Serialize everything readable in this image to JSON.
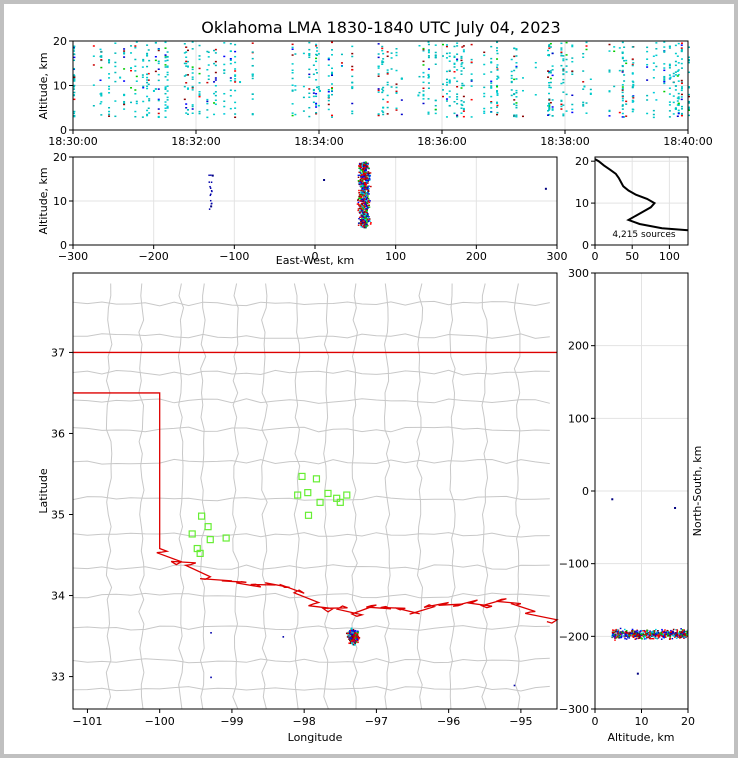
{
  "figure": {
    "title": "Oklahoma LMA 1830-1840 UTC July 04, 2023",
    "colors": {
      "state_border": "#dd0000",
      "county_line": "#c8c8c8",
      "station": "#66ee33"
    }
  },
  "chart_data": [
    {
      "id": "time_height",
      "type": "scatter",
      "xlabel": "",
      "ylabel": "Altitude, km",
      "x_tick_labels": [
        "18:30:00",
        "18:32:00",
        "18:34:00",
        "18:36:00",
        "18:38:00",
        "18:40:00"
      ],
      "x_range_minutes": [
        0,
        10
      ],
      "ylim": [
        0,
        20
      ],
      "y_ticks": [
        0,
        10,
        20
      ],
      "grid": true,
      "sample_points": [
        {
          "t": 0.0,
          "alt": 10
        },
        {
          "t": 0.75,
          "alt": 12
        },
        {
          "t": 1.3,
          "alt": 9
        },
        {
          "t": 2.7,
          "alt": 11
        },
        {
          "t": 4.0,
          "alt": 9
        },
        {
          "t": 5.6,
          "alt": 8
        },
        {
          "t": 6.9,
          "alt": 12
        },
        {
          "t": 8.3,
          "alt": 10
        },
        {
          "t": 9.7,
          "alt": 12
        }
      ]
    },
    {
      "id": "ew_height",
      "type": "scatter",
      "xlabel": "East-West, km",
      "ylabel": "Altitude, km",
      "xlim": [
        -300,
        300
      ],
      "x_ticks": [
        -300,
        -200,
        -100,
        0,
        100,
        200,
        300
      ],
      "ylim": [
        0,
        20
      ],
      "y_ticks": [
        0,
        10,
        20
      ],
      "grid": true,
      "sample_points": [
        {
          "x": 58,
          "alt": 5
        },
        {
          "x": 60,
          "alt": 12
        },
        {
          "x": 62,
          "alt": 18
        },
        {
          "x": -130,
          "alt": 9
        },
        {
          "x": -128,
          "alt": 16
        },
        {
          "x": 10,
          "alt": 15
        },
        {
          "x": 285,
          "alt": 13
        }
      ]
    },
    {
      "id": "altitude_histogram",
      "type": "line",
      "xlabel": "",
      "ylabel": "",
      "xlim": [
        0,
        125
      ],
      "x_ticks": [
        0,
        50,
        100
      ],
      "ylim": [
        0,
        21
      ],
      "y_ticks": [
        0,
        10,
        20
      ],
      "annotation": "4,215 sources",
      "profile": [
        {
          "alt": 3.5,
          "count": 125
        },
        {
          "alt": 4.0,
          "count": 90
        },
        {
          "alt": 5.0,
          "count": 60
        },
        {
          "alt": 6.0,
          "count": 45
        },
        {
          "alt": 7.0,
          "count": 55
        },
        {
          "alt": 8.0,
          "count": 65
        },
        {
          "alt": 9.0,
          "count": 75
        },
        {
          "alt": 10.0,
          "count": 80
        },
        {
          "alt": 11.0,
          "count": 70
        },
        {
          "alt": 12.0,
          "count": 55
        },
        {
          "alt": 13.0,
          "count": 45
        },
        {
          "alt": 14.0,
          "count": 38
        },
        {
          "alt": 15.0,
          "count": 35
        },
        {
          "alt": 16.0,
          "count": 32
        },
        {
          "alt": 17.0,
          "count": 28
        },
        {
          "alt": 18.0,
          "count": 20
        },
        {
          "alt": 19.0,
          "count": 12
        },
        {
          "alt": 20.0,
          "count": 5
        },
        {
          "alt": 20.5,
          "count": 0
        }
      ]
    },
    {
      "id": "plan_view",
      "type": "scatter",
      "xlabel": "Longitude",
      "ylabel": "Latitude",
      "xlim": [
        -101.2,
        -94.5
      ],
      "x_ticks": [
        -101,
        -100,
        -99,
        -98,
        -97,
        -96,
        -95
      ],
      "ylim": [
        32.6,
        37.98
      ],
      "y_ticks": [
        33,
        34,
        35,
        36,
        37
      ],
      "grid": false,
      "stations": [
        {
          "lon": -99.42,
          "lat": 34.98
        },
        {
          "lon": -99.33,
          "lat": 34.85
        },
        {
          "lon": -99.55,
          "lat": 34.76
        },
        {
          "lon": -99.3,
          "lat": 34.69
        },
        {
          "lon": -99.48,
          "lat": 34.58
        },
        {
          "lon": -99.44,
          "lat": 34.52
        },
        {
          "lon": -99.08,
          "lat": 34.71
        },
        {
          "lon": -98.03,
          "lat": 35.47
        },
        {
          "lon": -98.09,
          "lat": 35.24
        },
        {
          "lon": -97.95,
          "lat": 35.27
        },
        {
          "lon": -97.83,
          "lat": 35.44
        },
        {
          "lon": -97.78,
          "lat": 35.15
        },
        {
          "lon": -97.67,
          "lat": 35.26
        },
        {
          "lon": -97.55,
          "lat": 35.2
        },
        {
          "lon": -97.5,
          "lat": 35.15
        },
        {
          "lon": -97.41,
          "lat": 35.24
        },
        {
          "lon": -97.94,
          "lat": 34.99
        }
      ],
      "source_cluster": {
        "lon": -97.33,
        "lat": 33.5
      }
    },
    {
      "id": "ns_height",
      "type": "scatter",
      "xlabel": "Altitude, km",
      "ylabel": "North-South, km",
      "xlim": [
        0,
        20
      ],
      "x_ticks": [
        0,
        10,
        20
      ],
      "ylim": [
        -300,
        300
      ],
      "y_ticks": [
        -300,
        -200,
        -100,
        0,
        100,
        200,
        300
      ],
      "grid": true,
      "sample_points": [
        {
          "alt": 4,
          "ns": -197
        },
        {
          "alt": 8,
          "ns": -195
        },
        {
          "alt": 12,
          "ns": -198
        },
        {
          "alt": 16,
          "ns": -196
        },
        {
          "alt": 19,
          "ns": -192
        },
        {
          "alt": 3.5,
          "ns": -10
        },
        {
          "alt": 9,
          "ns": -250
        },
        {
          "alt": 17,
          "ns": -22
        }
      ]
    }
  ]
}
